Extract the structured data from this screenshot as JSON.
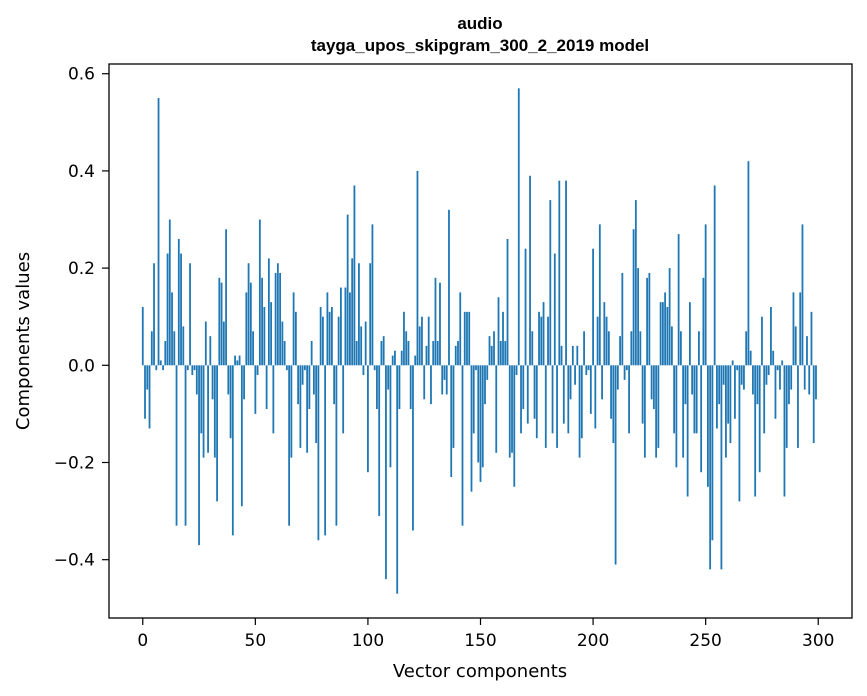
{
  "chart_data": {
    "type": "bar",
    "title": "audio",
    "subtitle": "tayga_upos_skipgram_300_2_2019 model",
    "xlabel": "Vector components",
    "ylabel": "Components values",
    "xlim": [
      -15,
      315
    ],
    "ylim": [
      -0.52,
      0.62
    ],
    "xticks": [
      0,
      50,
      100,
      150,
      200,
      250,
      300
    ],
    "xtick_labels": [
      "0",
      "50",
      "100",
      "150",
      "200",
      "250",
      "300"
    ],
    "yticks": [
      -0.4,
      -0.2,
      0.0,
      0.2,
      0.4,
      0.6
    ],
    "ytick_labels": [
      "−0.4",
      "−0.2",
      "0.0",
      "0.2",
      "0.4",
      "0.6"
    ],
    "bar_color": "#1f77b4",
    "grid": false,
    "x": "indices 0..299",
    "values": [
      0.12,
      -0.11,
      -0.05,
      -0.13,
      0.07,
      0.21,
      -0.01,
      0.55,
      0.01,
      -0.01,
      0.05,
      0.23,
      0.3,
      0.15,
      0.07,
      -0.33,
      0.26,
      0.23,
      0.08,
      -0.33,
      -0.01,
      0.21,
      -0.02,
      -0.01,
      -0.06,
      -0.37,
      -0.14,
      -0.19,
      0.09,
      -0.18,
      0.06,
      -0.07,
      -0.19,
      -0.28,
      0.18,
      0.17,
      0.09,
      0.28,
      -0.06,
      -0.15,
      -0.35,
      0.02,
      0.01,
      0.02,
      -0.29,
      -0.07,
      0.15,
      0.21,
      0.17,
      0.07,
      -0.1,
      -0.02,
      0.3,
      0.18,
      0.12,
      -0.09,
      0.22,
      0.13,
      -0.14,
      0.19,
      0.21,
      0.19,
      0.09,
      0.05,
      -0.01,
      -0.33,
      -0.19,
      0.15,
      0.11,
      -0.08,
      -0.17,
      -0.04,
      -0.01,
      -0.18,
      -0.09,
      0.05,
      -0.06,
      -0.16,
      -0.36,
      0.12,
      0.1,
      -0.35,
      0.15,
      0.11,
      0.12,
      -0.08,
      -0.33,
      0.1,
      0.16,
      -0.14,
      0.16,
      0.31,
      0.15,
      0.22,
      0.37,
      0.05,
      0.21,
      0.08,
      -0.02,
      0.09,
      -0.22,
      0.21,
      0.29,
      -0.01,
      -0.09,
      -0.31,
      0.05,
      0.06,
      -0.44,
      -0.05,
      -0.21,
      0.02,
      0.03,
      -0.47,
      -0.09,
      0.03,
      0.11,
      0.07,
      0.05,
      -0.09,
      -0.34,
      0.02,
      0.4,
      0.08,
      0.1,
      -0.07,
      0.04,
      0.1,
      -0.08,
      0.05,
      0.18,
      0.05,
      0.17,
      -0.06,
      -0.03,
      -0.06,
      0.32,
      -0.23,
      -0.17,
      0.04,
      0.05,
      0.15,
      -0.33,
      0.11,
      0.11,
      0.11,
      -0.26,
      -0.14,
      -0.01,
      -0.2,
      -0.24,
      -0.21,
      -0.08,
      -0.03,
      0.06,
      0.04,
      0.07,
      -0.18,
      0.14,
      0.05,
      0.11,
      0.05,
      0.26,
      -0.19,
      -0.18,
      -0.25,
      -0.02,
      0.57,
      -0.14,
      -0.09,
      0.24,
      -0.12,
      0.39,
      0.07,
      -0.11,
      -0.15,
      0.11,
      0.1,
      0.13,
      -0.17,
      0.1,
      0.34,
      -0.14,
      0.23,
      -0.17,
      0.38,
      0.04,
      -0.12,
      0.38,
      -0.14,
      -0.07,
      0.04,
      -0.04,
      0.04,
      -0.19,
      -0.15,
      0.07,
      -0.02,
      -0.01,
      -0.1,
      0.24,
      -0.13,
      0.1,
      0.29,
      -0.07,
      0.13,
      0.1,
      0.07,
      -0.11,
      -0.16,
      -0.41,
      -0.05,
      0.06,
      0.19,
      -0.03,
      -0.01,
      -0.14,
      0.07,
      0.28,
      0.34,
      0.2,
      0.07,
      -0.12,
      -0.19,
      0.18,
      0.19,
      -0.07,
      -0.09,
      -0.19,
      -0.17,
      0.13,
      0.13,
      0.15,
      0.12,
      0.2,
      0.08,
      -0.14,
      -0.21,
      0.27,
      0.07,
      -0.19,
      -0.08,
      -0.27,
      0.13,
      -0.06,
      -0.14,
      -0.14,
      0.07,
      -0.22,
      0.18,
      0.29,
      -0.25,
      -0.42,
      -0.36,
      0.37,
      -0.13,
      -0.08,
      -0.42,
      -0.04,
      -0.19,
      -0.12,
      -0.16,
      0.01,
      -0.11,
      -0.01,
      -0.28,
      -0.04,
      -0.05,
      0.07,
      0.42,
      0.03,
      -0.06,
      -0.27,
      -0.08,
      -0.22,
      0.1,
      -0.14,
      -0.04,
      -0.02,
      0.12,
      0.03,
      -0.11,
      -0.01,
      -0.05,
      0.01,
      -0.27,
      -0.17,
      -0.08,
      -0.05,
      0.15,
      0.08,
      -0.17,
      0.15,
      0.29,
      -0.05,
      0.06,
      -0.06,
      0.11,
      -0.16,
      -0.07
    ]
  }
}
